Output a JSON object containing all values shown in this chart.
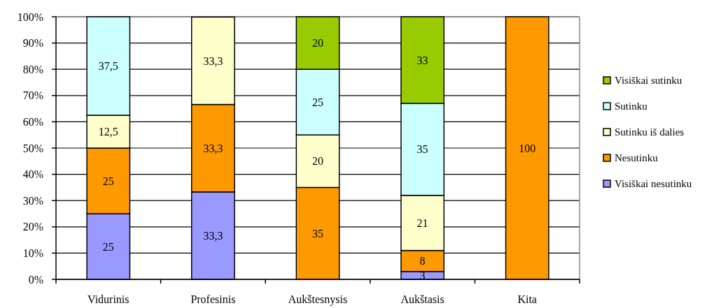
{
  "chart_data": {
    "type": "bar",
    "stacked": true,
    "categories": [
      "Vidurinis",
      "Profesinis",
      "Aukštesnysis",
      "Aukštasis",
      "Kita"
    ],
    "series": [
      {
        "name": "Visiškai nesutinku",
        "color": "#9999ff",
        "values": [
          25,
          33.3,
          0,
          3,
          0
        ],
        "value_labels": [
          "25",
          "33,3",
          null,
          "3",
          null
        ]
      },
      {
        "name": "Nesutinku",
        "color": "#ff9900",
        "values": [
          25,
          33.3,
          35,
          8,
          100
        ],
        "value_labels": [
          "25",
          "33,3",
          "35",
          "8",
          "100"
        ]
      },
      {
        "name": "Sutinku iš dalies",
        "color": "#ffffcc",
        "values": [
          12.5,
          33.3,
          20,
          21,
          0
        ],
        "value_labels": [
          "12,5",
          "33,3",
          "20",
          "21",
          null
        ]
      },
      {
        "name": "Sutinku",
        "color": "#ccffff",
        "values": [
          37.5,
          0,
          25,
          35,
          0
        ],
        "value_labels": [
          "37,5",
          null,
          "25",
          "35",
          null
        ]
      },
      {
        "name": "Visiškai sutinku",
        "color": "#99cc00",
        "values": [
          0,
          0,
          20,
          33,
          0
        ],
        "value_labels": [
          null,
          null,
          "20",
          "33",
          null
        ]
      }
    ],
    "ylim": [
      0,
      100
    ],
    "yticks": [
      {
        "value": 0,
        "label": "0%"
      },
      {
        "value": 10,
        "label": "10%"
      },
      {
        "value": 20,
        "label": "20%"
      },
      {
        "value": 30,
        "label": "30%"
      },
      {
        "value": 40,
        "label": "40%"
      },
      {
        "value": 50,
        "label": "50%"
      },
      {
        "value": 60,
        "label": "60%"
      },
      {
        "value": 70,
        "label": "70%"
      },
      {
        "value": 80,
        "label": "80%"
      },
      {
        "value": 90,
        "label": "90%"
      },
      {
        "value": 100,
        "label": "100%"
      }
    ],
    "grid": "y",
    "legend": "right"
  }
}
